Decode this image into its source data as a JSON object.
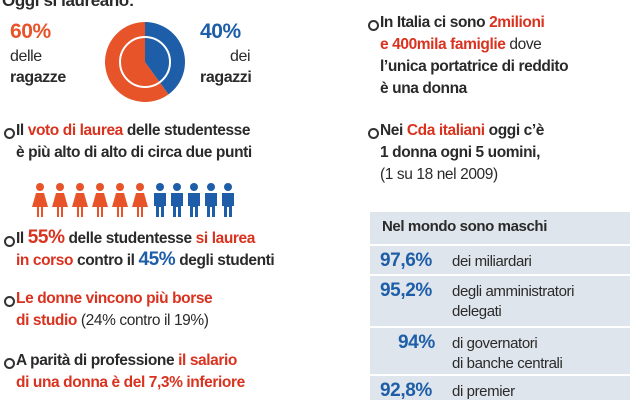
{
  "header": {
    "title": "Oggi si laureano:"
  },
  "pie": {
    "slices": [
      {
        "value": 60,
        "label": "60%",
        "line1": "delle",
        "line2": "ragazze",
        "color": "#e8542a"
      },
      {
        "value": 40,
        "label": "40%",
        "line1": "dei",
        "line2": "ragazzi",
        "color": "#1e5ea8"
      }
    ]
  },
  "left_bullets": [
    {
      "lines": [
        [
          {
            "text": "Il "
          },
          {
            "text": "voto di laurea",
            "style": "red"
          },
          {
            "text": " delle studentesse"
          }
        ],
        [
          {
            "text": "è più alto di alto di circa due punti"
          }
        ]
      ]
    },
    {
      "lines": [
        [
          {
            "text": "Il "
          },
          {
            "text": "55%",
            "style": "big-red"
          },
          {
            "text": " delle studentesse "
          },
          {
            "text": "si laurea",
            "style": "red"
          }
        ],
        [
          {
            "text": "in corso",
            "style": "red"
          },
          {
            "text": " contro il "
          },
          {
            "text": "45%",
            "style": "big-blue"
          },
          {
            "text": " degli studenti"
          }
        ]
      ]
    },
    {
      "lines": [
        [
          {
            "text": "Le donne vincono più borse",
            "style": "red"
          }
        ],
        [
          {
            "text": "di studio",
            "style": "red"
          },
          {
            "text": " (24% contro il 19%)",
            "style": "light"
          }
        ]
      ]
    },
    {
      "lines": [
        [
          {
            "text": "A parità di professione "
          },
          {
            "text": "il salario",
            "style": "red"
          }
        ],
        [
          {
            "text": "di una donna è del 7,3% inferiore",
            "style": "red"
          }
        ]
      ]
    }
  ],
  "icons": {
    "female": {
      "count": 6,
      "color": "#e8542a"
    },
    "male": {
      "count": 5,
      "color": "#1e5ea8"
    }
  },
  "right_bullets": [
    {
      "lines": [
        [
          {
            "text": "In Italia ci sono "
          },
          {
            "text": "2milioni",
            "style": "red"
          }
        ],
        [
          {
            "text": "e 400mila famiglie",
            "style": "red"
          },
          {
            "text": " dove",
            "style": "light"
          }
        ],
        [
          {
            "text": "l’unica portatrice di reddito"
          }
        ],
        [
          {
            "text": "è una donna"
          }
        ]
      ]
    },
    {
      "lines": [
        [
          {
            "text": "Nei "
          },
          {
            "text": "Cda italiani",
            "style": "red"
          },
          {
            "text": " oggi c’è"
          }
        ],
        [
          {
            "text": "1 donna ogni 5 uomini,"
          }
        ],
        [
          {
            "text": "(1 su 18 nel 2009)",
            "style": "light"
          }
        ]
      ]
    }
  ],
  "box": {
    "title": "Nel mondo sono maschi",
    "rows": [
      {
        "value_text": "97,6%",
        "lines": [
          "dei miliardari"
        ]
      },
      {
        "value_text": "95,2%",
        "lines": [
          "degli amministratori",
          "delegati"
        ]
      },
      {
        "value_text": "94%",
        "lines": [
          "di governatori",
          "di banche centrali"
        ]
      },
      {
        "value_text": "92,8%",
        "lines": [
          "di premier"
        ]
      }
    ]
  }
}
